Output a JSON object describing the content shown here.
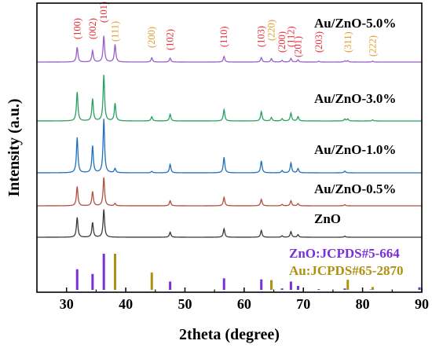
{
  "chart_data": {
    "type": "line",
    "xlabel": "2theta (degree)",
    "ylabel": "Intensity (a.u.)",
    "xlim": [
      25,
      90
    ],
    "xticks": [
      30,
      40,
      50,
      60,
      70,
      80,
      90
    ],
    "ylim": [
      0,
      6
    ],
    "grid": false,
    "colors": {
      "hkl_zno": "#e8303a",
      "hkl_au": "#e0a030"
    },
    "series": [
      {
        "name": "ZnO",
        "color": "#3a3a3a",
        "offset": 0.0,
        "peaks": [
          [
            31.8,
            0.7
          ],
          [
            34.4,
            0.52
          ],
          [
            36.3,
            0.98
          ],
          [
            47.5,
            0.18
          ],
          [
            56.6,
            0.3
          ],
          [
            62.9,
            0.24
          ],
          [
            66.4,
            0.05
          ],
          [
            67.9,
            0.2
          ],
          [
            69.1,
            0.09
          ],
          [
            77.0,
            0.04
          ]
        ]
      },
      {
        "name": "Au/ZnO-0.5%",
        "color": "#b05040",
        "offset": 0.9,
        "peaks": [
          [
            31.8,
            0.68
          ],
          [
            34.4,
            0.5
          ],
          [
            36.3,
            1.0
          ],
          [
            38.2,
            0.08
          ],
          [
            47.5,
            0.18
          ],
          [
            56.6,
            0.3
          ],
          [
            62.9,
            0.23
          ],
          [
            66.4,
            0.05
          ],
          [
            67.9,
            0.18
          ],
          [
            69.1,
            0.08
          ],
          [
            77.0,
            0.04
          ]
        ]
      },
      {
        "name": "Au/ZnO-1.0%",
        "color": "#2070c0",
        "offset": 1.85,
        "peaks": [
          [
            31.8,
            1.25
          ],
          [
            34.4,
            0.95
          ],
          [
            36.3,
            1.9
          ],
          [
            38.2,
            0.15
          ],
          [
            44.4,
            0.05
          ],
          [
            47.5,
            0.3
          ],
          [
            56.6,
            0.55
          ],
          [
            62.9,
            0.42
          ],
          [
            66.4,
            0.08
          ],
          [
            67.9,
            0.35
          ],
          [
            69.1,
            0.15
          ],
          [
            77.0,
            0.06
          ]
        ]
      },
      {
        "name": "Au/ZnO-3.0%",
        "color": "#2aa060",
        "offset": 3.3,
        "peaks": [
          [
            31.8,
            1.02
          ],
          [
            34.4,
            0.78
          ],
          [
            36.3,
            1.62
          ],
          [
            38.2,
            0.62
          ],
          [
            44.4,
            0.15
          ],
          [
            47.5,
            0.24
          ],
          [
            56.6,
            0.4
          ],
          [
            62.9,
            0.33
          ],
          [
            64.6,
            0.12
          ],
          [
            66.4,
            0.08
          ],
          [
            67.9,
            0.28
          ],
          [
            69.1,
            0.15
          ],
          [
            77.0,
            0.07
          ],
          [
            77.5,
            0.07
          ],
          [
            81.7,
            0.04
          ]
        ]
      },
      {
        "name": "Au/ZnO-5.0%",
        "color": "#9a60c8",
        "offset": 4.95,
        "peaks": [
          [
            31.8,
            0.52
          ],
          [
            34.4,
            0.4
          ],
          [
            36.3,
            0.92
          ],
          [
            38.2,
            0.62
          ],
          [
            44.4,
            0.15
          ],
          [
            47.5,
            0.14
          ],
          [
            56.6,
            0.2
          ],
          [
            62.9,
            0.16
          ],
          [
            64.6,
            0.12
          ],
          [
            66.4,
            0.06
          ],
          [
            67.9,
            0.13
          ],
          [
            69.1,
            0.08
          ],
          [
            72.6,
            0.03
          ],
          [
            77.0,
            0.04
          ],
          [
            77.5,
            0.05
          ],
          [
            81.7,
            0.03
          ]
        ]
      }
    ],
    "sample_labels": [
      "ZnO",
      "Au/ZnO-0.5%",
      "Au/ZnO-1.0%",
      "Au/ZnO-3.0%",
      "Au/ZnO-5.0%"
    ],
    "hkl_annotations": [
      {
        "label": "(100)",
        "x": 31.8,
        "phase": "ZnO"
      },
      {
        "label": "(002)",
        "x": 34.4,
        "phase": "ZnO"
      },
      {
        "label": "(101)",
        "x": 36.3,
        "phase": "ZnO"
      },
      {
        "label": "(111)",
        "x": 38.2,
        "phase": "Au"
      },
      {
        "label": "(200)",
        "x": 44.4,
        "phase": "Au"
      },
      {
        "label": "(102)",
        "x": 47.5,
        "phase": "ZnO"
      },
      {
        "label": "(110)",
        "x": 56.6,
        "phase": "ZnO"
      },
      {
        "label": "(103)",
        "x": 62.9,
        "phase": "ZnO"
      },
      {
        "label": "(220)",
        "x": 64.6,
        "phase": "Au"
      },
      {
        "label": "(200)",
        "x": 66.4,
        "phase": "ZnO"
      },
      {
        "label": "(112)",
        "x": 67.9,
        "phase": "ZnO"
      },
      {
        "label": "(201)",
        "x": 69.1,
        "phase": "ZnO"
      },
      {
        "label": "(203)",
        "x": 72.6,
        "phase": "ZnO"
      },
      {
        "label": "(311)",
        "x": 77.5,
        "phase": "Au"
      },
      {
        "label": "(222)",
        "x": 81.7,
        "phase": "Au"
      }
    ],
    "reference_patterns": [
      {
        "name": "ZnO:JCPDS#5-664",
        "color": "#7b2fd8",
        "sticks": [
          [
            31.8,
            0.57
          ],
          [
            34.4,
            0.44
          ],
          [
            36.3,
            1.0
          ],
          [
            47.5,
            0.23
          ],
          [
            56.6,
            0.32
          ],
          [
            62.9,
            0.29
          ],
          [
            66.4,
            0.04
          ],
          [
            67.9,
            0.23
          ],
          [
            69.1,
            0.11
          ],
          [
            72.6,
            0.02
          ],
          [
            77.0,
            0.04
          ],
          [
            81.4,
            0.01
          ],
          [
            89.6,
            0.07
          ]
        ]
      },
      {
        "name": "Au:JCPDS#65-2870",
        "color": "#b09010",
        "sticks": [
          [
            38.2,
            1.0
          ],
          [
            44.4,
            0.48
          ],
          [
            64.6,
            0.27
          ],
          [
            77.5,
            0.28
          ],
          [
            81.7,
            0.08
          ]
        ]
      }
    ]
  }
}
